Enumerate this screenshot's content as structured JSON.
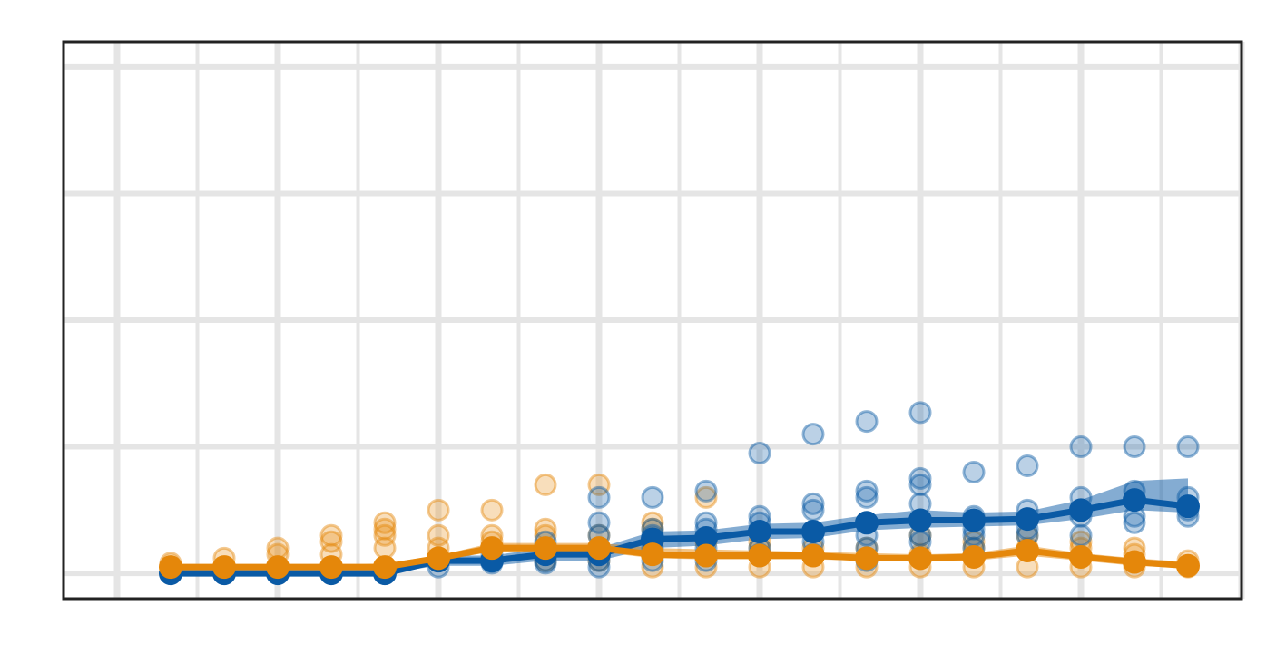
{
  "chart_data": {
    "type": "line",
    "title": "",
    "xlabel": "",
    "ylabel": "",
    "xlim": [
      0.0,
      22.0
    ],
    "ylim": [
      -0.2,
      4.2
    ],
    "grid": true,
    "legend": "none",
    "x": [
      2,
      3,
      4,
      5,
      6,
      7,
      8,
      9,
      10,
      11,
      12,
      13,
      14,
      15,
      16,
      17,
      18,
      19,
      20,
      21
    ],
    "series": [
      {
        "color": "#0a5aa5",
        "values": [
          0.0,
          0.0,
          0.0,
          0.0,
          0.0,
          0.1,
          0.1,
          0.15,
          0.15,
          0.27,
          0.28,
          0.33,
          0.33,
          0.4,
          0.42,
          0.42,
          0.43,
          0.5,
          0.58,
          0.53
        ],
        "band_low": [
          0.0,
          0.0,
          0.0,
          0.0,
          0.0,
          0.06,
          0.06,
          0.1,
          0.1,
          0.2,
          0.22,
          0.27,
          0.28,
          0.34,
          0.36,
          0.37,
          0.38,
          0.43,
          0.5,
          0.48
        ],
        "band_high": [
          0.0,
          0.0,
          0.0,
          0.0,
          0.0,
          0.14,
          0.14,
          0.2,
          0.2,
          0.33,
          0.34,
          0.39,
          0.4,
          0.46,
          0.5,
          0.48,
          0.49,
          0.58,
          0.73,
          0.75
        ],
        "points": [
          [
            [
              0.0,
              0.0,
              0.0
            ]
          ],
          [
            [
              0.0,
              0.0
            ]
          ],
          [
            [
              0.0,
              0.0
            ]
          ],
          [
            [
              0.0,
              0.0
            ]
          ],
          [
            [
              0.0,
              0.0
            ]
          ],
          [
            [
              0.1,
              0.12,
              0.05
            ]
          ],
          [
            [
              0.1,
              0.08,
              0.15
            ]
          ],
          [
            [
              0.15,
              0.1,
              0.2,
              0.25,
              0.08
            ]
          ],
          [
            [
              0.15,
              0.1,
              0.2,
              0.3,
              0.4,
              0.6,
              0.05
            ]
          ],
          [
            [
              0.27,
              0.2,
              0.3,
              0.35,
              0.6,
              0.1
            ]
          ],
          [
            [
              0.28,
              0.2,
              0.35,
              0.4,
              0.65,
              0.1
            ]
          ],
          [
            [
              0.33,
              0.2,
              0.4,
              0.45,
              0.95,
              0.15
            ]
          ],
          [
            [
              0.33,
              0.25,
              0.5,
              0.55,
              1.1,
              0.15
            ]
          ],
          [
            [
              0.4,
              0.3,
              0.6,
              0.65,
              1.2,
              0.2,
              0.1
            ]
          ],
          [
            [
              0.42,
              0.3,
              0.55,
              0.7,
              0.75,
              1.27,
              0.25
            ]
          ],
          [
            [
              0.42,
              0.3,
              0.45,
              0.8,
              0.35,
              0.2
            ]
          ],
          [
            [
              0.43,
              0.35,
              0.5,
              0.85,
              0.3
            ]
          ],
          [
            [
              0.5,
              0.3,
              0.6,
              1.0,
              0.45
            ]
          ],
          [
            [
              0.58,
              0.45,
              0.65,
              1.0,
              0.4
            ]
          ],
          [
            [
              0.53,
              0.5,
              0.45,
              1.0,
              0.6
            ]
          ]
        ]
      },
      {
        "color": "#e5870a",
        "values": [
          0.05,
          0.05,
          0.05,
          0.05,
          0.05,
          0.12,
          0.2,
          0.2,
          0.2,
          0.15,
          0.14,
          0.14,
          0.14,
          0.12,
          0.12,
          0.13,
          0.18,
          0.13,
          0.09,
          0.06
        ],
        "band_low": [
          0.05,
          0.05,
          0.04,
          0.04,
          0.03,
          0.1,
          0.17,
          0.17,
          0.17,
          0.12,
          0.11,
          0.11,
          0.11,
          0.1,
          0.1,
          0.1,
          0.14,
          0.1,
          0.06,
          0.04
        ],
        "band_high": [
          0.05,
          0.05,
          0.06,
          0.06,
          0.08,
          0.14,
          0.24,
          0.24,
          0.24,
          0.2,
          0.19,
          0.18,
          0.17,
          0.16,
          0.15,
          0.16,
          0.22,
          0.16,
          0.12,
          0.09
        ],
        "points": [
          [
            [
              0.05,
              0.08
            ]
          ],
          [
            [
              0.05,
              0.12
            ]
          ],
          [
            [
              0.05,
              0.15,
              0.2
            ]
          ],
          [
            [
              0.05,
              0.15,
              0.25,
              0.3
            ]
          ],
          [
            [
              0.05,
              0.2,
              0.3,
              0.35,
              0.4
            ]
          ],
          [
            [
              0.12,
              0.2,
              0.3,
              0.5
            ]
          ],
          [
            [
              0.2,
              0.25,
              0.3,
              0.5
            ]
          ],
          [
            [
              0.2,
              0.1,
              0.3,
              0.35,
              0.7
            ]
          ],
          [
            [
              0.2,
              0.1,
              0.3,
              0.7
            ]
          ],
          [
            [
              0.15,
              0.05,
              0.25,
              0.35,
              0.4
            ]
          ],
          [
            [
              0.14,
              0.05,
              0.25,
              0.6
            ]
          ],
          [
            [
              0.14,
              0.05,
              0.2,
              0.25
            ]
          ],
          [
            [
              0.14,
              0.05,
              0.2
            ]
          ],
          [
            [
              0.12,
              0.05,
              0.2
            ]
          ],
          [
            [
              0.12,
              0.05,
              0.15,
              0.3
            ]
          ],
          [
            [
              0.13,
              0.05,
              0.2,
              0.25
            ]
          ],
          [
            [
              0.18,
              0.05,
              0.2,
              0.3
            ]
          ],
          [
            [
              0.13,
              0.05,
              0.2,
              0.25
            ]
          ],
          [
            [
              0.09,
              0.05,
              0.15,
              0.2
            ]
          ],
          [
            [
              0.06,
              0.05,
              0.1
            ]
          ]
        ]
      }
    ],
    "x_gridlines": [
      1,
      2.5,
      4,
      5.5,
      7,
      8.5,
      10,
      11.5,
      13,
      14.5,
      16,
      17.5,
      19,
      20.5,
      22
    ],
    "y_gridlines": [
      0,
      1,
      2,
      3,
      4
    ]
  }
}
